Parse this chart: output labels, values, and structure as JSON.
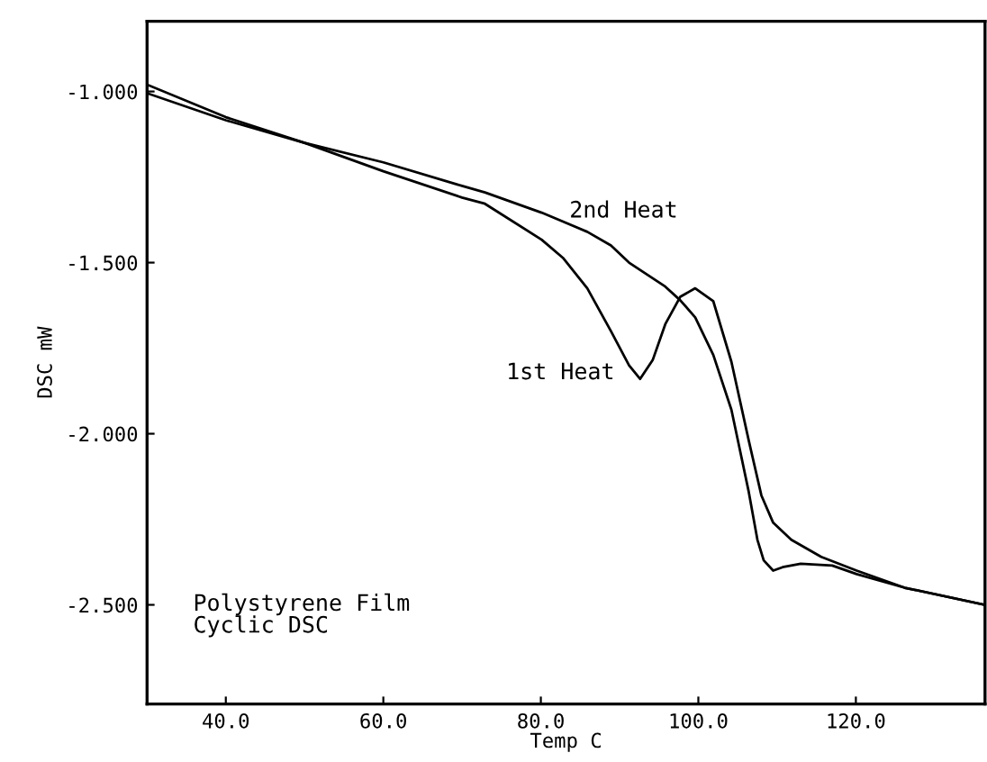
{
  "chart_data": {
    "type": "line",
    "xlabel": "Temp C",
    "ylabel": "DSC mW",
    "xlim": [
      30,
      136.4
    ],
    "ylim": [
      -2.79,
      -0.795
    ],
    "xticks": [
      {
        "value": 40,
        "label": "40.0"
      },
      {
        "value": 60,
        "label": "60.0"
      },
      {
        "value": 80,
        "label": "80.0"
      },
      {
        "value": 100,
        "label": "100.0"
      },
      {
        "value": 120,
        "label": "120.0"
      }
    ],
    "yticks": [
      {
        "value": -1.0,
        "label": "-1.000"
      },
      {
        "value": -1.5,
        "label": "-1.500"
      },
      {
        "value": -2.0,
        "label": "-2.000"
      },
      {
        "value": -2.5,
        "label": "-2.500"
      }
    ],
    "grid": false,
    "marker": "none",
    "line_style": "solid",
    "series": [
      {
        "color": "#000000",
        "x": [
          30,
          40,
          50,
          60,
          70,
          72.9,
          80.1,
          82.8,
          85.9,
          88.9,
          91.2,
          92.6,
          94.2,
          95.8,
          97.7,
          99.6,
          101.9,
          104.2,
          106.4,
          108.0,
          109.5,
          111.8,
          115.6,
          120.1,
          126.2,
          136.4
        ],
        "values": [
          -0.98,
          -1.075,
          -1.15,
          -1.233,
          -1.31,
          -1.328,
          -1.433,
          -1.486,
          -1.575,
          -1.7,
          -1.8,
          -1.84,
          -1.785,
          -1.68,
          -1.6,
          -1.575,
          -1.613,
          -1.79,
          -2.02,
          -2.18,
          -2.26,
          -2.31,
          -2.36,
          -2.4,
          -2.45,
          -2.5
        ]
      },
      {
        "color": "#000000",
        "x": [
          30,
          40,
          50,
          60,
          70,
          72.9,
          80.1,
          85.9,
          88.9,
          91.2,
          95.8,
          97.7,
          99.6,
          101.9,
          104.2,
          106.4,
          107.5,
          108.3,
          109.5,
          110.7,
          113,
          117,
          120.1,
          126.2,
          136.4
        ],
        "values": [
          -1.005,
          -1.084,
          -1.15,
          -1.207,
          -1.276,
          -1.295,
          -1.354,
          -1.41,
          -1.45,
          -1.5,
          -1.57,
          -1.61,
          -1.66,
          -1.77,
          -1.93,
          -2.17,
          -2.31,
          -2.37,
          -2.4,
          -2.39,
          -2.38,
          -2.385,
          -2.41,
          -2.45,
          -2.5
        ]
      }
    ],
    "annotations": [
      "1st Heat",
      "2nd Heat",
      "Polystyrene Film\nCyclic DSC"
    ]
  }
}
